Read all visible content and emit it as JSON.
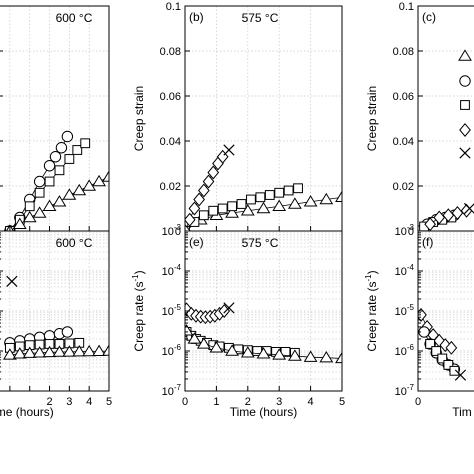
{
  "chart_data": [
    {
      "panel": "partial-left-top",
      "type": "line",
      "panel_label": "",
      "temperature_label": "600 °C",
      "xlabel": "",
      "ylabel": "",
      "xlim": [
        -0.6,
        5
      ],
      "ylim": [
        0,
        0.1
      ],
      "y_log": false,
      "grid": true,
      "xticks": [],
      "yticks": [],
      "ytick_labels": [],
      "series": [
        {
          "marker": "circle",
          "x": [
            0.0,
            0.5,
            1.0,
            1.5,
            2.0,
            2.3,
            2.6,
            2.9
          ],
          "y": [
            0.0,
            0.006,
            0.014,
            0.022,
            0.029,
            0.033,
            0.037,
            0.042
          ]
        },
        {
          "marker": "square",
          "x": [
            0.0,
            0.5,
            1.0,
            1.5,
            2.0,
            2.5,
            3.0,
            3.4,
            3.8
          ],
          "y": [
            0.0,
            0.005,
            0.011,
            0.017,
            0.022,
            0.027,
            0.032,
            0.036,
            0.039
          ]
        },
        {
          "marker": "triangle",
          "x": [
            0.0,
            0.5,
            1.0,
            1.5,
            2.0,
            2.5,
            3.0,
            3.5,
            4.0,
            4.5,
            5.0
          ],
          "y": [
            0.0,
            0.003,
            0.006,
            0.008,
            0.011,
            0.013,
            0.016,
            0.018,
            0.02,
            0.022,
            0.024
          ]
        }
      ]
    },
    {
      "panel": "b",
      "type": "line",
      "panel_label": "(b)",
      "temperature_label": "575 °C",
      "xlabel": "",
      "ylabel": "Creep strain",
      "xlim": [
        0,
        5
      ],
      "ylim": [
        0,
        0.1
      ],
      "y_log": false,
      "grid": true,
      "xticks": [],
      "yticks": [
        0,
        0.02,
        0.04,
        0.06,
        0.08,
        0.1
      ],
      "ytick_labels": [
        "0",
        "0.02",
        "0.04",
        "0.06",
        "0.08",
        "0.1"
      ],
      "series": [
        {
          "marker": "triangle",
          "x": [
            0.0,
            0.5,
            1.0,
            1.5,
            2.0,
            2.5,
            3.0,
            3.5,
            4.0,
            4.5,
            5.0
          ],
          "y": [
            0.0,
            0.005,
            0.007,
            0.008,
            0.009,
            0.01,
            0.011,
            0.012,
            0.013,
            0.014,
            0.015
          ]
        },
        {
          "marker": "square",
          "x": [
            0.0,
            0.3,
            0.6,
            0.9,
            1.2,
            1.5,
            1.8,
            2.1,
            2.4,
            2.7,
            3.0,
            3.3,
            3.6
          ],
          "y": [
            0.0,
            0.004,
            0.007,
            0.009,
            0.01,
            0.011,
            0.012,
            0.014,
            0.015,
            0.016,
            0.017,
            0.018,
            0.019
          ]
        },
        {
          "marker": "diamond",
          "x": [
            0.0,
            0.15,
            0.3,
            0.45,
            0.6,
            0.75,
            0.9,
            1.05,
            1.2
          ],
          "y": [
            0.0,
            0.005,
            0.01,
            0.014,
            0.018,
            0.022,
            0.026,
            0.03,
            0.033
          ]
        },
        {
          "marker": "cross",
          "x": [
            1.4
          ],
          "y": [
            0.036
          ]
        }
      ]
    },
    {
      "panel": "c",
      "type": "line",
      "panel_label": "(c)",
      "temperature_label": "",
      "xlabel": "",
      "ylabel": "Creep strain",
      "xlim": [
        0,
        3
      ],
      "ylim": [
        0,
        0.1
      ],
      "y_log": false,
      "grid": true,
      "xticks": [],
      "yticks": [
        0,
        0.02,
        0.04,
        0.06,
        0.08,
        0.1
      ],
      "ytick_labels": [
        "0",
        "0.02",
        "0.04",
        "0.06",
        "0.08",
        "0.1"
      ],
      "series": [
        {
          "marker": "circle",
          "x": [
            0.0,
            0.15,
            0.3,
            0.45,
            0.6
          ],
          "y": [
            0.0,
            0.003,
            0.005,
            0.006,
            0.007
          ]
        },
        {
          "marker": "square",
          "x": [
            0.1,
            0.25,
            0.4,
            0.55
          ],
          "y": [
            0.002,
            0.004,
            0.005,
            0.006
          ]
        },
        {
          "marker": "diamond",
          "x": [
            0.2,
            0.35,
            0.5,
            0.65,
            0.8
          ],
          "y": [
            0.003,
            0.006,
            0.007,
            0.008,
            0.009
          ]
        },
        {
          "marker": "cross",
          "x": [
            0.85
          ],
          "y": [
            0.01
          ]
        }
      ]
    },
    {
      "panel": "partial-left-bottom",
      "type": "line",
      "panel_label": "",
      "temperature_label": "600 °C",
      "xlabel": "Time (hours)",
      "ylabel": "",
      "xlim": [
        -0.6,
        5
      ],
      "ylim": [
        1e-07,
        0.001
      ],
      "y_log": true,
      "grid": true,
      "xticks": [
        2,
        3,
        4,
        5
      ],
      "yticks": [],
      "ytick_labels": [],
      "series": [
        {
          "marker": "circle",
          "x": [
            0.0,
            0.5,
            1.0,
            1.5,
            2.0,
            2.5,
            2.9
          ],
          "y": [
            1.6e-06,
            1.8e-06,
            2e-06,
            2.2e-06,
            2.4e-06,
            2.7e-06,
            3e-06
          ]
        },
        {
          "marker": "square",
          "x": [
            0.0,
            0.5,
            1.0,
            1.5,
            2.0,
            2.5,
            3.0,
            3.5
          ],
          "y": [
            1.2e-06,
            1.3e-06,
            1.4e-06,
            1.45e-06,
            1.5e-06,
            1.5e-06,
            1.55e-06,
            1.6e-06
          ]
        },
        {
          "marker": "triangle",
          "x": [
            0.0,
            0.5,
            1.0,
            1.5,
            2.0,
            2.5,
            3.0,
            3.5,
            4.0,
            4.5,
            5.0
          ],
          "y": [
            8e-07,
            8.5e-07,
            8.8e-07,
            9e-07,
            9.2e-07,
            9.4e-07,
            9.5e-07,
            9.6e-07,
            9.7e-07,
            9.8e-07,
            1e-06
          ]
        },
        {
          "marker": "cross",
          "x": [
            0.1
          ],
          "y": [
            5.5e-05
          ]
        }
      ]
    },
    {
      "panel": "e",
      "type": "line",
      "panel_label": "(e)",
      "temperature_label": "575 °C",
      "xlabel": "Time (hours)",
      "ylabel": "Creep rate (s",
      "ylabel_sup": "-1",
      "ylabel_close": ")",
      "xlim": [
        0,
        5
      ],
      "ylim": [
        1e-07,
        0.001
      ],
      "y_log": true,
      "grid": true,
      "xticks": [
        0,
        1,
        2,
        3,
        4,
        5
      ],
      "yticks": [
        0.001,
        0.0001,
        1e-05,
        1e-06,
        1e-07
      ],
      "ytick_base": "10",
      "ytick_exps": [
        "-3",
        "-4",
        "-5",
        "-6",
        "-7"
      ],
      "series": [
        {
          "marker": "diamond",
          "x": [
            0.05,
            0.2,
            0.35,
            0.5,
            0.65,
            0.8,
            0.95,
            1.1,
            1.25
          ],
          "y": [
            1.1e-05,
            8.5e-06,
            7.6e-06,
            7.2e-06,
            7e-06,
            7.2e-06,
            7.6e-06,
            8.5e-06,
            1e-05
          ]
        },
        {
          "marker": "cross",
          "x": [
            1.4
          ],
          "y": [
            1.2e-05
          ]
        },
        {
          "marker": "square",
          "x": [
            0.05,
            0.2,
            0.35,
            0.5,
            0.7,
            0.9,
            1.1,
            1.4,
            1.7,
            2.0,
            2.3,
            2.6,
            2.9,
            3.2,
            3.5
          ],
          "y": [
            3e-06,
            2.4e-06,
            2e-06,
            1.8e-06,
            1.6e-06,
            1.4e-06,
            1.3e-06,
            1.2e-06,
            1.1e-06,
            1.05e-06,
            1e-06,
            1e-06,
            9.5e-07,
            9.5e-07,
            9e-07
          ]
        },
        {
          "marker": "triangle",
          "x": [
            0.05,
            0.3,
            0.6,
            1.0,
            1.5,
            2.0,
            2.5,
            3.0,
            3.5,
            4.0,
            4.5,
            5.0
          ],
          "y": [
            3.2e-06,
            2e-06,
            1.5e-06,
            1.2e-06,
            1e-06,
            9e-07,
            8.5e-07,
            8e-07,
            7.5e-07,
            7e-07,
            6.8e-07,
            6.5e-07
          ]
        }
      ]
    },
    {
      "panel": "f",
      "type": "line",
      "panel_label": "(f)",
      "temperature_label": "",
      "xlabel": "Tim",
      "ylabel": "Creep rate (s",
      "ylabel_sup": "-1",
      "ylabel_close": ")",
      "xlim": [
        0,
        3
      ],
      "ylim": [
        1e-07,
        0.001
      ],
      "y_log": true,
      "grid": true,
      "xticks": [
        0,
        1
      ],
      "yticks": [
        0.001,
        0.0001,
        1e-05,
        1e-06,
        1e-07
      ],
      "ytick_base": "10",
      "ytick_exps": [
        "-3",
        "-4",
        "-5",
        "-6",
        "-7"
      ],
      "series": [
        {
          "marker": "diamond",
          "x": [
            0.05,
            0.15,
            0.25,
            0.35,
            0.45,
            0.55
          ],
          "y": [
            8e-06,
            4e-06,
            2.5e-06,
            1.8e-06,
            1.4e-06,
            1.2e-06
          ]
        },
        {
          "marker": "circle",
          "x": [
            0.1,
            0.2,
            0.3,
            0.4,
            0.5,
            0.6
          ],
          "y": [
            3e-06,
            1.5e-06,
            9e-07,
            6e-07,
            4.5e-07,
            3.5e-07
          ]
        },
        {
          "marker": "square",
          "x": [
            0.2,
            0.3,
            0.4,
            0.5,
            0.6
          ],
          "y": [
            1.5e-06,
            1e-06,
            6.5e-07,
            4.5e-07,
            3.2e-07
          ]
        },
        {
          "marker": "cross",
          "x": [
            0.7
          ],
          "y": [
            2.5e-07
          ]
        }
      ]
    }
  ],
  "legend": {
    "placement": "right",
    "markers": [
      "triangle",
      "circle",
      "square",
      "diamond",
      "cross"
    ]
  }
}
